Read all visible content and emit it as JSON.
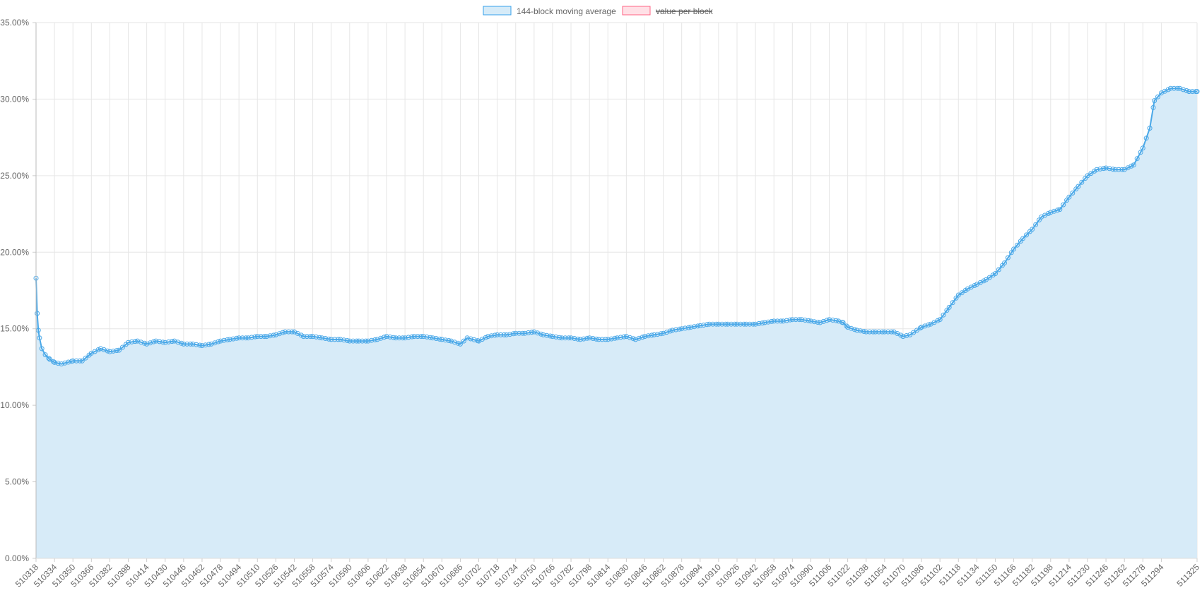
{
  "chart_data": {
    "type": "area",
    "title": "",
    "xlabel": "",
    "ylabel": "",
    "x_range": [
      510318,
      511325
    ],
    "ylim": [
      0,
      35
    ],
    "y_ticks": [
      0,
      5,
      10,
      15,
      20,
      25,
      30,
      35
    ],
    "y_tick_labels": [
      "0.00%",
      "5.00%",
      "10.00%",
      "15.00%",
      "20.00%",
      "25.00%",
      "30.00%",
      "35.00%"
    ],
    "x_tick_labels": [
      "510318",
      "510334",
      "510350",
      "510366",
      "510382",
      "510398",
      "510414",
      "510430",
      "510446",
      "510462",
      "510478",
      "510494",
      "510510",
      "510526",
      "510542",
      "510558",
      "510574",
      "510590",
      "510606",
      "510622",
      "510638",
      "510654",
      "510670",
      "510686",
      "510702",
      "510718",
      "510734",
      "510750",
      "510766",
      "510782",
      "510798",
      "510814",
      "510830",
      "510846",
      "510862",
      "510878",
      "510894",
      "510910",
      "510926",
      "510942",
      "510958",
      "510974",
      "510990",
      "511006",
      "511022",
      "511038",
      "511054",
      "511070",
      "511086",
      "511102",
      "511118",
      "511134",
      "511150",
      "511166",
      "511182",
      "511198",
      "511214",
      "511230",
      "511246",
      "511262",
      "511278",
      "511294",
      "511325"
    ],
    "grid": true,
    "legend_position": "top-center",
    "legend": [
      {
        "label": "144-block moving average",
        "color": "#36a2eb",
        "fill": "#d6ebf8",
        "hidden": false
      },
      {
        "label": "value per block",
        "color": "#ff6384",
        "fill": "#ffe0e6",
        "hidden": true
      }
    ],
    "series": [
      {
        "name": "144-block moving average",
        "color": "#4aa8e8",
        "fill": "#d7ebf8",
        "points": [
          [
            510318,
            18.3
          ],
          [
            510319,
            16.0
          ],
          [
            510320,
            14.9
          ],
          [
            510321,
            14.4
          ],
          [
            510323,
            13.7
          ],
          [
            510326,
            13.3
          ],
          [
            510330,
            13.0
          ],
          [
            510334,
            12.8
          ],
          [
            510340,
            12.7
          ],
          [
            510350,
            12.9
          ],
          [
            510358,
            12.9
          ],
          [
            510366,
            13.4
          ],
          [
            510374,
            13.7
          ],
          [
            510382,
            13.5
          ],
          [
            510390,
            13.6
          ],
          [
            510398,
            14.1
          ],
          [
            510406,
            14.2
          ],
          [
            510414,
            14.0
          ],
          [
            510422,
            14.2
          ],
          [
            510430,
            14.1
          ],
          [
            510438,
            14.2
          ],
          [
            510446,
            14.0
          ],
          [
            510454,
            14.0
          ],
          [
            510462,
            13.9
          ],
          [
            510470,
            14.0
          ],
          [
            510478,
            14.2
          ],
          [
            510486,
            14.3
          ],
          [
            510494,
            14.4
          ],
          [
            510502,
            14.4
          ],
          [
            510510,
            14.5
          ],
          [
            510518,
            14.5
          ],
          [
            510526,
            14.6
          ],
          [
            510534,
            14.8
          ],
          [
            510542,
            14.8
          ],
          [
            510550,
            14.5
          ],
          [
            510558,
            14.5
          ],
          [
            510566,
            14.4
          ],
          [
            510574,
            14.3
          ],
          [
            510582,
            14.3
          ],
          [
            510590,
            14.2
          ],
          [
            510598,
            14.2
          ],
          [
            510606,
            14.2
          ],
          [
            510614,
            14.3
          ],
          [
            510622,
            14.5
          ],
          [
            510630,
            14.4
          ],
          [
            510638,
            14.4
          ],
          [
            510646,
            14.5
          ],
          [
            510654,
            14.5
          ],
          [
            510662,
            14.4
          ],
          [
            510670,
            14.3
          ],
          [
            510678,
            14.2
          ],
          [
            510686,
            14.0
          ],
          [
            510692,
            14.4
          ],
          [
            510702,
            14.2
          ],
          [
            510710,
            14.5
          ],
          [
            510718,
            14.6
          ],
          [
            510726,
            14.6
          ],
          [
            510734,
            14.7
          ],
          [
            510742,
            14.7
          ],
          [
            510750,
            14.8
          ],
          [
            510758,
            14.6
          ],
          [
            510766,
            14.5
          ],
          [
            510774,
            14.4
          ],
          [
            510782,
            14.4
          ],
          [
            510790,
            14.3
          ],
          [
            510798,
            14.4
          ],
          [
            510806,
            14.3
          ],
          [
            510814,
            14.3
          ],
          [
            510822,
            14.4
          ],
          [
            510830,
            14.5
          ],
          [
            510838,
            14.3
          ],
          [
            510846,
            14.5
          ],
          [
            510854,
            14.6
          ],
          [
            510862,
            14.7
          ],
          [
            510870,
            14.9
          ],
          [
            510878,
            15.0
          ],
          [
            510886,
            15.1
          ],
          [
            510894,
            15.2
          ],
          [
            510902,
            15.3
          ],
          [
            510910,
            15.3
          ],
          [
            510918,
            15.3
          ],
          [
            510926,
            15.3
          ],
          [
            510934,
            15.3
          ],
          [
            510942,
            15.3
          ],
          [
            510950,
            15.4
          ],
          [
            510958,
            15.5
          ],
          [
            510966,
            15.5
          ],
          [
            510974,
            15.6
          ],
          [
            510982,
            15.6
          ],
          [
            510990,
            15.5
          ],
          [
            510998,
            15.4
          ],
          [
            511006,
            15.6
          ],
          [
            511014,
            15.5
          ],
          [
            511018,
            15.4
          ],
          [
            511022,
            15.1
          ],
          [
            511030,
            14.9
          ],
          [
            511038,
            14.8
          ],
          [
            511046,
            14.8
          ],
          [
            511054,
            14.8
          ],
          [
            511062,
            14.8
          ],
          [
            511070,
            14.5
          ],
          [
            511076,
            14.6
          ],
          [
            511082,
            14.9
          ],
          [
            511086,
            15.1
          ],
          [
            511094,
            15.3
          ],
          [
            511102,
            15.6
          ],
          [
            511110,
            16.4
          ],
          [
            511118,
            17.2
          ],
          [
            511126,
            17.6
          ],
          [
            511134,
            17.9
          ],
          [
            511142,
            18.2
          ],
          [
            511150,
            18.6
          ],
          [
            511158,
            19.3
          ],
          [
            511166,
            20.2
          ],
          [
            511174,
            20.9
          ],
          [
            511182,
            21.5
          ],
          [
            511190,
            22.3
          ],
          [
            511198,
            22.6
          ],
          [
            511206,
            22.8
          ],
          [
            511214,
            23.6
          ],
          [
            511222,
            24.3
          ],
          [
            511230,
            25.0
          ],
          [
            511238,
            25.4
          ],
          [
            511246,
            25.5
          ],
          [
            511254,
            25.4
          ],
          [
            511262,
            25.4
          ],
          [
            511270,
            25.7
          ],
          [
            511278,
            26.8
          ],
          [
            511284,
            28.1
          ],
          [
            511288,
            29.9
          ],
          [
            511294,
            30.4
          ],
          [
            511302,
            30.7
          ],
          [
            511310,
            30.7
          ],
          [
            511318,
            30.5
          ],
          [
            511325,
            30.5
          ]
        ]
      }
    ]
  }
}
